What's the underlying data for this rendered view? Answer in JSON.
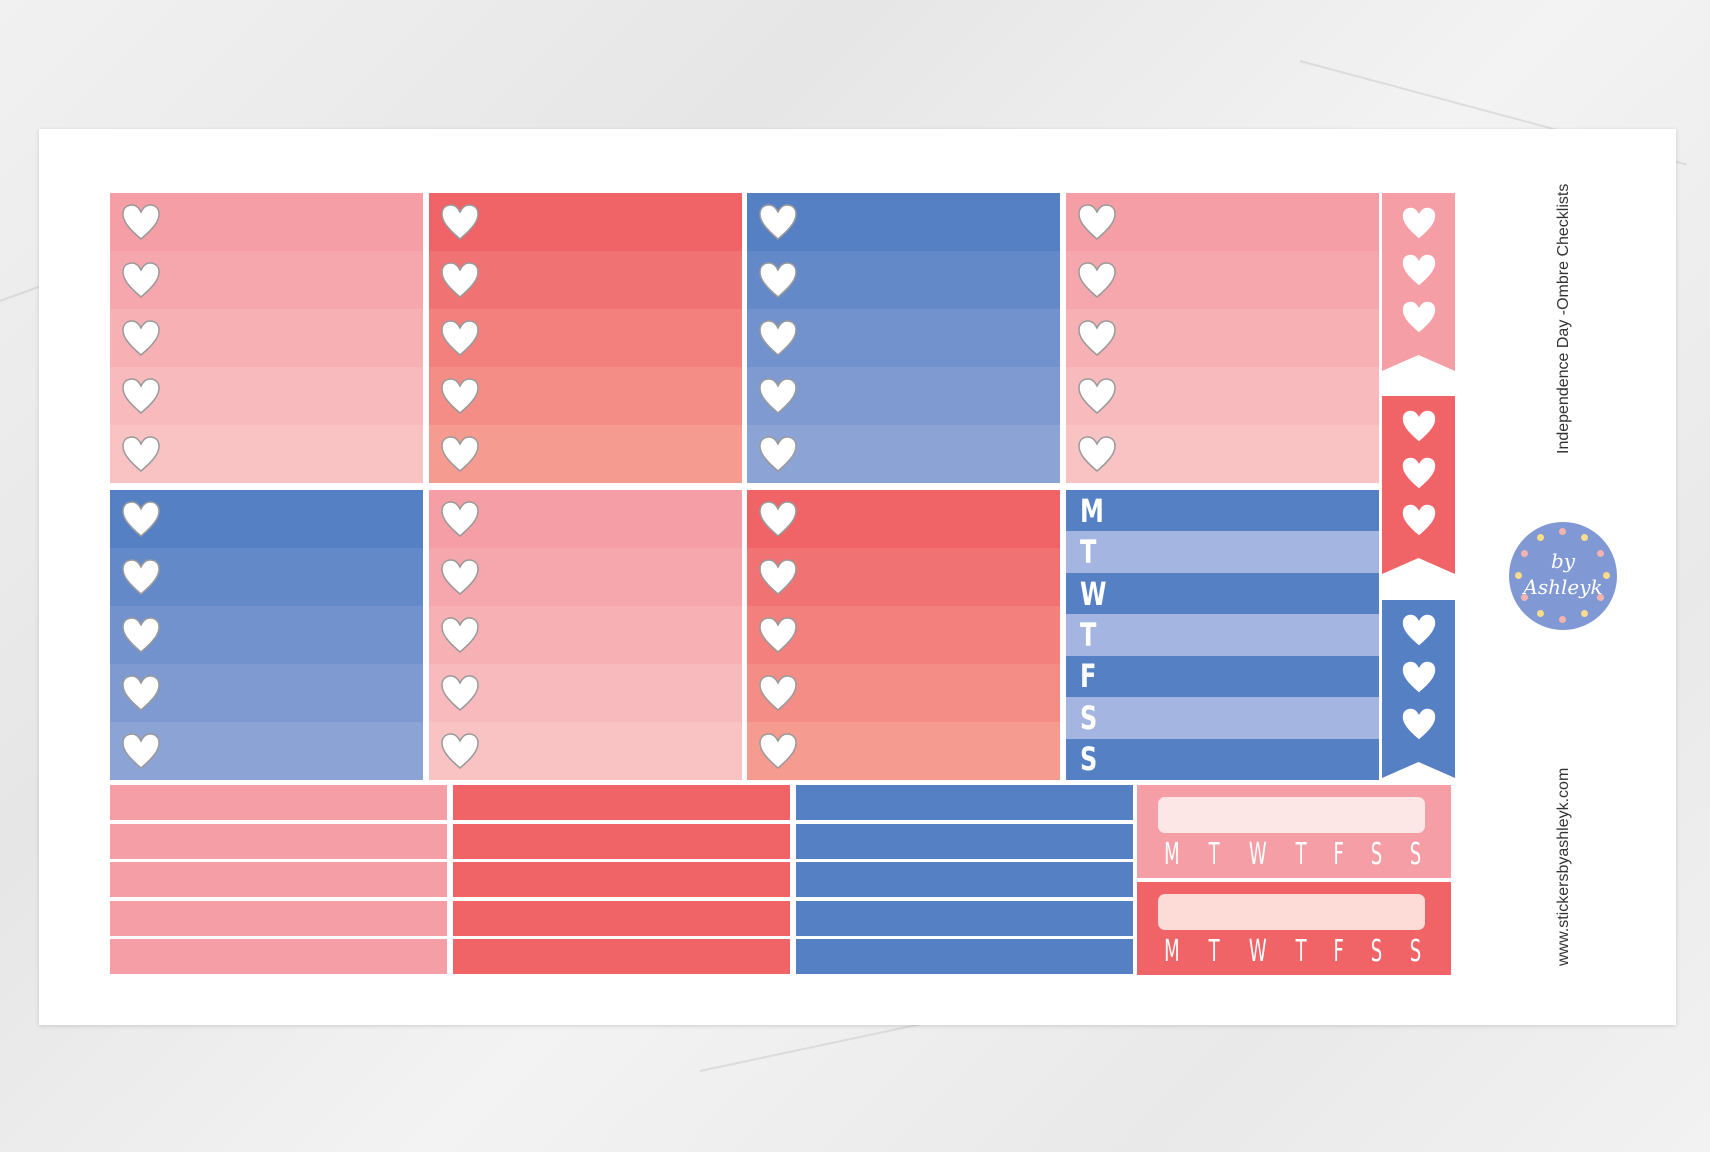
{
  "sheet": {
    "title": "Independence Day -Ombre Checklists",
    "url": "www.stickersbyashleyk.com",
    "logo": {
      "line1": "by",
      "line2": "Ashleyk"
    }
  },
  "colors": {
    "pink": [
      "#f59ea5",
      "#f9c3c4"
    ],
    "red": [
      "#f06468",
      "#f59b90"
    ],
    "blue": [
      "#5580c3",
      "#8ca3d5"
    ],
    "weekday_dark": "#5580c3",
    "weekday_light": "#a3b5e0",
    "heart_outline": "#9a9a9a"
  },
  "checklist_boxes": [
    {
      "color": "pink"
    },
    {
      "color": "red"
    },
    {
      "color": "blue"
    },
    {
      "color": "pink"
    },
    {
      "color": "blue"
    },
    {
      "color": "pink"
    },
    {
      "color": "red"
    }
  ],
  "checklist_items_per_box": 5,
  "weekday_box": {
    "days": [
      "M",
      "T",
      "W",
      "T",
      "F",
      "S",
      "S"
    ]
  },
  "flags": [
    {
      "color": "pink",
      "hearts": 3
    },
    {
      "color": "red",
      "hearts": 3
    },
    {
      "color": "blue",
      "hearts": 3
    }
  ],
  "strip_groups": [
    {
      "color": "pink",
      "strips": 5
    },
    {
      "color": "red",
      "strips": 5
    },
    {
      "color": "blue",
      "strips": 5
    }
  ],
  "weekly_boxes": [
    {
      "color": "#f59ea5",
      "bar": "#fde6e6",
      "days": [
        "M",
        "T",
        "W",
        "T",
        "F",
        "S",
        "S"
      ]
    },
    {
      "color": "#f06468",
      "bar": "#fddbd6",
      "days": [
        "M",
        "T",
        "W",
        "T",
        "F",
        "S",
        "S"
      ]
    }
  ]
}
